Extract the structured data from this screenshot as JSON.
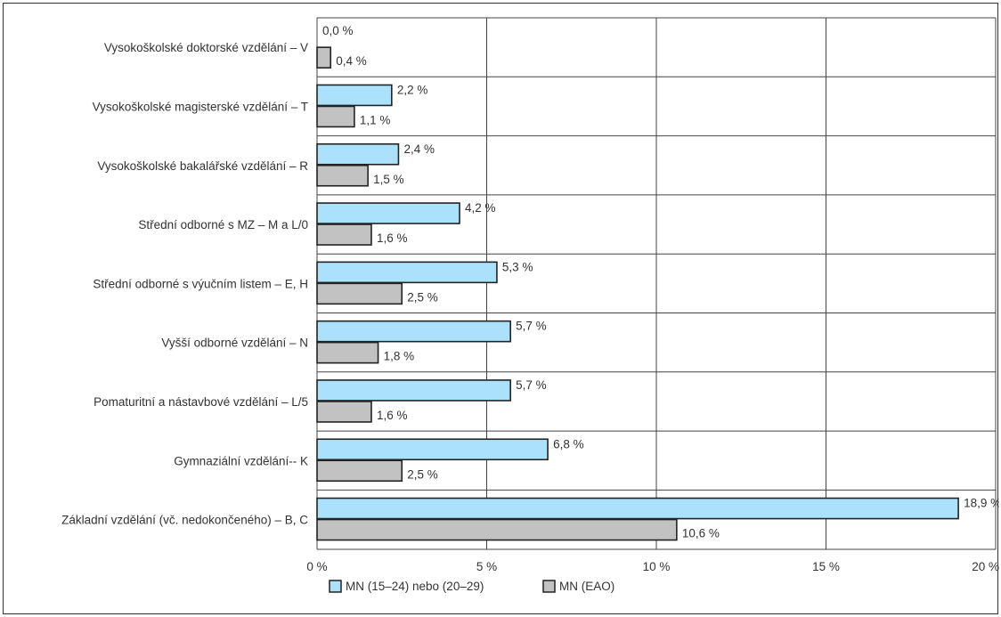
{
  "chart_data": {
    "type": "bar",
    "orientation": "horizontal",
    "categories": [
      "Vysokoškolské doktorské vzdělání – V",
      "Vysokoškolské magisterské vzdělání – T",
      "Vysokoškolské bakalářské vzdělání – R",
      "Střední odborné s MZ – M a L/0",
      "Střední odborné s výučním listem – E, H",
      "Vyšší odborné vzdělání – N",
      "Pomaturitní a nástavbové vzdělání – L/5",
      "Gymnaziální vzdělání-- K",
      "Základní vzdělání (vč. nedokončeného) – B, C"
    ],
    "series": [
      {
        "name": "MN (15–24) nebo (20–29)",
        "color": "#abe1fa",
        "values": [
          0.0,
          2.2,
          2.4,
          4.2,
          5.3,
          5.7,
          5.7,
          6.8,
          18.9
        ],
        "labels": [
          "0,0 %",
          "2,2 %",
          "2,4 %",
          "4,2 %",
          "5,3 %",
          "5,7 %",
          "5,7 %",
          "6,8 %",
          "18,9 %"
        ]
      },
      {
        "name": "MN (EAO)",
        "color": "#c2c2c2",
        "values": [
          0.4,
          1.1,
          1.5,
          1.6,
          2.5,
          1.8,
          1.6,
          2.5,
          10.6
        ],
        "labels": [
          "0,4 %",
          "1,1 %",
          "1,5 %",
          "1,6 %",
          "2,5 %",
          "1,8 %",
          "1,6 %",
          "2,5 %",
          "10,6 %"
        ]
      }
    ],
    "xlim": [
      0,
      20
    ],
    "xticks": [
      0,
      5,
      10,
      15,
      20
    ],
    "xtick_labels": [
      "0 %",
      "5 %",
      "10 %",
      "15 %",
      "20 %"
    ],
    "grid": true,
    "legend_position": "bottom-center",
    "title": "",
    "xlabel": "",
    "ylabel": ""
  }
}
